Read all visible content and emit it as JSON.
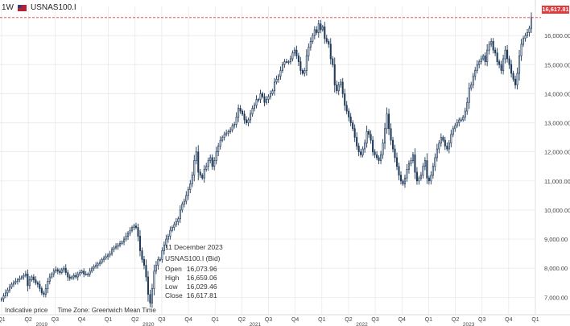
{
  "header": {
    "interval": "1W",
    "symbol": "USNAS100.I"
  },
  "info": {
    "date": "11 December 2023",
    "symbol": "USNAS100.I (Bid)",
    "rows": [
      {
        "label": "Open",
        "value": "16,073.96"
      },
      {
        "label": "High",
        "value": "16,659.06"
      },
      {
        "label": "Low",
        "value": "16,029.46"
      },
      {
        "label": "Close",
        "value": "16,617.81"
      }
    ]
  },
  "footer": {
    "note": "Indicative price",
    "timezone": "Time Zone: Greenwich Mean Time"
  },
  "last_price_label": "16,617.81",
  "colors": {
    "candle": "#1f3a5a",
    "last_price": "#e03a3a",
    "grid": "#e6e6e6"
  },
  "chart_data": {
    "type": "candlestick",
    "ylim": [
      6400,
      17000
    ],
    "y_ticks": [
      7000,
      8000,
      9000,
      10000,
      11000,
      12000,
      13000,
      14000,
      15000,
      16000
    ],
    "y_tick_labels": [
      "7,000.00",
      "8,000.00",
      "9,000.00",
      "10,000.00",
      "11,000.00",
      "12,000.00",
      "13,000.00",
      "14,000.00",
      "15,000.00",
      "16,000.00"
    ],
    "x_quarters": [
      "Q1",
      "Q2",
      "Q3",
      "Q4",
      "Q1",
      "Q2",
      "Q3",
      "Q4",
      "Q1",
      "Q2",
      "Q3",
      "Q4",
      "Q1",
      "Q2",
      "Q3",
      "Q4",
      "Q1",
      "Q2",
      "Q3",
      "Q4",
      "Q1"
    ],
    "x_years": [
      "2019",
      "2020",
      "2021",
      "2022",
      "2023"
    ],
    "grid": true,
    "last_close": 16617.81,
    "weekly_close": [
      6950,
      7050,
      7150,
      7250,
      7350,
      7450,
      7500,
      7550,
      7600,
      7650,
      7700,
      7750,
      7800,
      7400,
      7600,
      7700,
      7600,
      7500,
      7450,
      7300,
      7150,
      7100,
      7300,
      7550,
      7700,
      7800,
      7900,
      7950,
      7900,
      7850,
      7950,
      8000,
      7850,
      7700,
      7650,
      7700,
      7750,
      7700,
      7800,
      7850,
      7900,
      7800,
      7800,
      7800,
      7900,
      8000,
      8050,
      8100,
      8150,
      8200,
      8300,
      8350,
      8400,
      8450,
      8500,
      8650,
      8700,
      8750,
      8800,
      8850,
      8900,
      9000,
      9100,
      9200,
      9300,
      9400,
      9450,
      9400,
      9100,
      8600,
      8300,
      8100,
      7700,
      7100,
      6800,
      7300,
      7900,
      8100,
      8300,
      8300,
      8600,
      8800,
      9000,
      9100,
      9300,
      9400,
      9500,
      9600,
      9700,
      10000,
      10200,
      10300,
      10500,
      10700,
      10900,
      11200,
      11700,
      12000,
      11300,
      11200,
      11100,
      11400,
      11500,
      11700,
      11800,
      11500,
      11700,
      12000,
      12200,
      12400,
      12500,
      12600,
      12650,
      12700,
      12750,
      12900,
      12950,
      13200,
      13500,
      13400,
      13300,
      13100,
      13000,
      13100,
      13300,
      13500,
      13600,
      13800,
      13800,
      14000,
      13900,
      13700,
      13800,
      13900,
      14000,
      14100,
      14400,
      14500,
      14600,
      14800,
      15000,
      15100,
      15100,
      15100,
      15200,
      15400,
      15500,
      15300,
      15100,
      14800,
      14700,
      14800,
      15300,
      15600,
      15800,
      16000,
      16200,
      16100,
      16400,
      16200,
      16300,
      15900,
      15800,
      15700,
      15200,
      15000,
      14300,
      14100,
      14300,
      14400,
      14000,
      13600,
      13400,
      13200,
      13000,
      12800,
      12500,
      12200,
      12000,
      11900,
      12100,
      12300,
      12700,
      12600,
      12400,
      12000,
      11900,
      11800,
      11700,
      11900,
      12300,
      12800,
      13300,
      12800,
      12400,
      12100,
      11800,
      11500,
      11200,
      11000,
      10900,
      11100,
      11400,
      11600,
      11700,
      11900,
      11300,
      11000,
      11100,
      11200,
      11500,
      11700,
      11100,
      11000,
      11200,
      11500,
      11800,
      12100,
      12300,
      12500,
      12400,
      12200,
      12100,
      12300,
      12600,
      12800,
      12900,
      13000,
      13100,
      13100,
      13200,
      13400,
      13700,
      14200,
      14300,
      14600,
      14800,
      15000,
      15100,
      15200,
      15300,
      15100,
      15500,
      15700,
      15800,
      15500,
      15400,
      15100,
      15000,
      14800,
      15200,
      15500,
      15200,
      15000,
      14700,
      14500,
      14300,
      14700,
      15300,
      15700,
      15900,
      16000,
      16100,
      16250,
      16617.81
    ]
  }
}
